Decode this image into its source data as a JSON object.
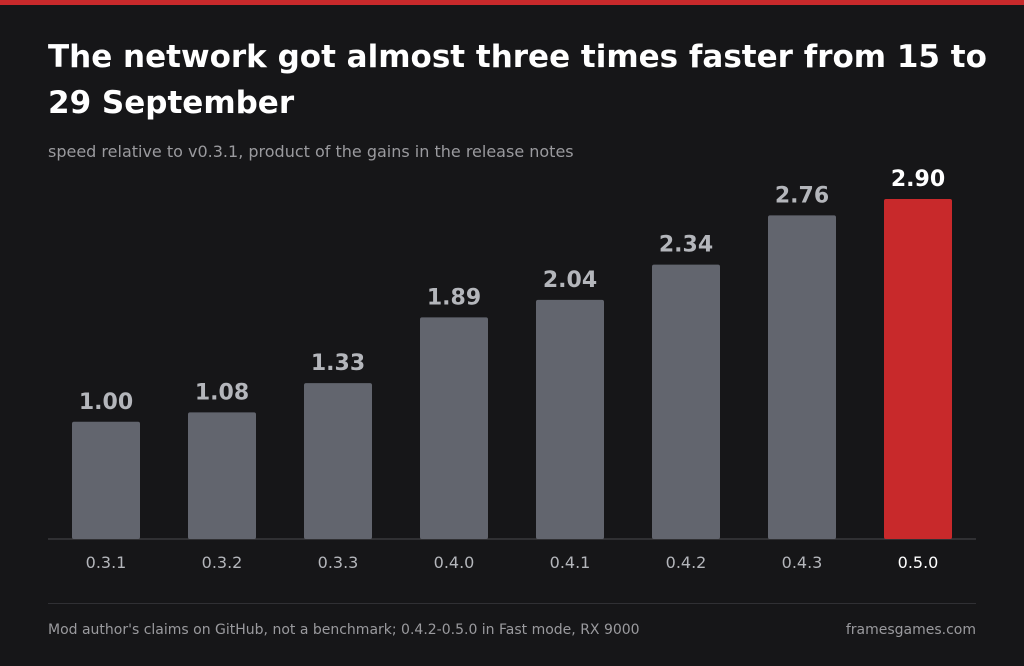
{
  "colors": {
    "background": "#161618",
    "accent": "#c8292b",
    "bar": "#62656e",
    "label_default": "#b4b6bb",
    "label_highlight": "#ffffff",
    "axis": "#4a4a4e"
  },
  "chart_data": {
    "type": "bar",
    "title": "The network got almost three times faster from 15 to 29 September",
    "subtitle": "speed relative to v0.3.1, product of the gains in the release notes",
    "categories": [
      "0.3.1",
      "0.3.2",
      "0.3.3",
      "0.4.0",
      "0.4.1",
      "0.4.2",
      "0.4.3",
      "0.5.0"
    ],
    "values": [
      1.0,
      1.08,
      1.33,
      1.89,
      2.04,
      2.34,
      2.76,
      2.9
    ],
    "value_labels": [
      "1.00",
      "1.08",
      "1.33",
      "1.89",
      "2.04",
      "2.34",
      "2.76",
      "2.90"
    ],
    "highlight_category": "0.5.0",
    "ylim": [
      0,
      2.9
    ],
    "grid": false,
    "xlabel": "",
    "ylabel": ""
  },
  "footer": {
    "note": "Mod author's claims on GitHub, not a benchmark; 0.4.2-0.5.0 in Fast mode, RX 9000",
    "source": "framesgames.com"
  }
}
